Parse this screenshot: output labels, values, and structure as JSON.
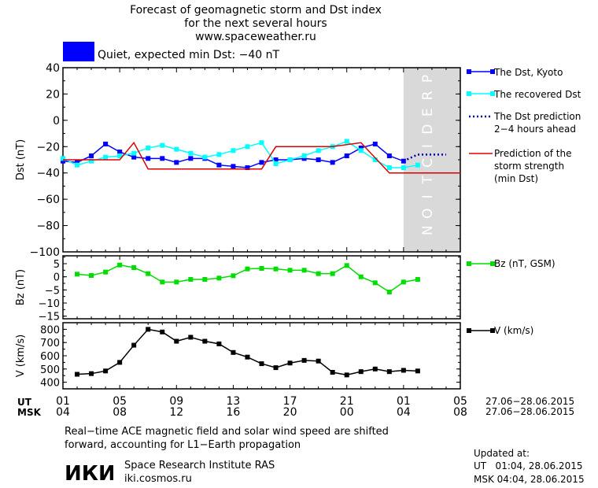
{
  "header": {
    "title_line1": "Forecast of geomagnetic storm and Dst index",
    "title_line2": "for the next several hours",
    "website": "www.spaceweather.ru"
  },
  "status": {
    "text": "Quiet, expected min Dst: −40 nT",
    "color": "#0000ff"
  },
  "x_axis": {
    "ut_label": "UT",
    "msk_label": "MSK",
    "ut_ticks": [
      "01",
      "05",
      "09",
      "13",
      "17",
      "21",
      "01",
      "05"
    ],
    "msk_ticks": [
      "04",
      "08",
      "12",
      "16",
      "20",
      "00",
      "04",
      "08"
    ],
    "ut_range": "27.06−28.06.2015",
    "msk_range": "27.06−28.06.2015"
  },
  "prediction_label": "PREDICTION",
  "chart_data": [
    {
      "type": "line",
      "ylabel": "Dst (nT)",
      "ylim": [
        -100,
        40
      ],
      "yticks": [
        40,
        20,
        0,
        -20,
        -40,
        -60,
        -80,
        -100
      ],
      "x_unit": "hours since 01 UT 27.06.2015",
      "xlim": [
        0,
        28
      ],
      "prediction_region_x": [
        24,
        28
      ],
      "series": [
        {
          "name": "The Dst, Kyoto",
          "color": "#0000ff",
          "marker": "square",
          "style": "solid",
          "x": [
            0,
            1,
            2,
            3,
            4,
            5,
            6,
            7,
            8,
            9,
            10,
            11,
            12,
            13,
            14,
            15,
            16,
            17,
            18,
            19,
            20,
            21,
            22,
            23,
            24
          ],
          "y": [
            -31,
            -32,
            -27,
            -18,
            -24,
            -28,
            -29,
            -29,
            -32,
            -29,
            -29,
            -34,
            -35,
            -36,
            -32,
            -30,
            -30,
            -29,
            -30,
            -32,
            -27,
            -21,
            -18,
            -27,
            -31
          ]
        },
        {
          "name": "The recovered Dst",
          "color": "#00ffff",
          "marker": "square",
          "style": "solid",
          "x": [
            0,
            1,
            2,
            3,
            4,
            5,
            6,
            7,
            8,
            9,
            10,
            11,
            12,
            13,
            14,
            15,
            16,
            17,
            18,
            19,
            20,
            21,
            22,
            23,
            24,
            25
          ],
          "y": [
            -29,
            -34,
            -31,
            -28,
            -27,
            -25,
            -21,
            -19,
            -22,
            -25,
            -28,
            -26,
            -23,
            -20,
            -17,
            -33,
            -30,
            -27,
            -23,
            -20,
            -16,
            -23,
            -30,
            -36,
            -36,
            -34
          ]
        },
        {
          "name": "The Dst prediction\n2−4 hours ahead",
          "color": "#0000aa",
          "marker": "none",
          "style": "dotted",
          "x": [
            24,
            25,
            26,
            27
          ],
          "y": [
            -31,
            -26,
            -26,
            -26
          ]
        },
        {
          "name": "Prediction of the\nstorm strength\n(min Dst)",
          "color": "#dd0000",
          "marker": "none",
          "style": "solid",
          "x": [
            0,
            4,
            5,
            6,
            12,
            14,
            15,
            19,
            21,
            23,
            28
          ],
          "y": [
            -30,
            -30,
            -17,
            -37,
            -37,
            -37,
            -20,
            -20,
            -17,
            -40,
            -40
          ]
        }
      ]
    },
    {
      "type": "line",
      "ylabel": "Bz (nT)",
      "ylim": [
        -16,
        8
      ],
      "yticks": [
        5,
        0,
        -5,
        -10,
        -15
      ],
      "xlim": [
        0,
        28
      ],
      "series": [
        {
          "name": "Bz (nT, GSM)",
          "color": "#00dd00",
          "marker": "square",
          "style": "solid",
          "x": [
            1,
            2,
            3,
            4,
            5,
            6,
            7,
            8,
            9,
            10,
            11,
            12,
            13,
            14,
            15,
            16,
            17,
            18,
            19,
            20,
            21,
            22,
            23,
            24,
            25
          ],
          "y": [
            1.0,
            0.5,
            1.8,
            4.5,
            3.5,
            1.2,
            -2.0,
            -2.0,
            -1.0,
            -1.0,
            -0.5,
            0.4,
            3.0,
            3.2,
            3.0,
            2.5,
            2.5,
            1.2,
            1.2,
            4.3,
            0.0,
            -2.3,
            -5.8,
            -2.0,
            -1.0
          ]
        }
      ]
    },
    {
      "type": "line",
      "ylabel": "V (km/s)",
      "ylim": [
        350,
        850
      ],
      "yticks": [
        800,
        700,
        600,
        500,
        400
      ],
      "xlim": [
        0,
        28
      ],
      "series": [
        {
          "name": "V (km/s)",
          "color": "#000000",
          "marker": "square",
          "style": "solid",
          "x": [
            1,
            2,
            3,
            4,
            5,
            6,
            7,
            8,
            9,
            10,
            11,
            12,
            13,
            14,
            15,
            16,
            17,
            18,
            19,
            20,
            21,
            22,
            23,
            24,
            25
          ],
          "y": [
            460,
            465,
            485,
            550,
            680,
            800,
            780,
            710,
            740,
            710,
            690,
            625,
            590,
            540,
            510,
            545,
            565,
            560,
            475,
            455,
            480,
            500,
            480,
            490,
            485
          ]
        }
      ]
    }
  ],
  "footer": {
    "note_line1": "Real−time ACE magnetic field and solar wind speed are shifted",
    "note_line2": "forward, accounting for L1−Earth propagation",
    "institute": "Space Research Institute RAS",
    "institute_site": "iki.cosmos.ru",
    "updated_label": "Updated at:",
    "updated_ut": "UT   01:04, 28.06.2015",
    "updated_msk": "MSK 04:04, 28.06.2015"
  }
}
